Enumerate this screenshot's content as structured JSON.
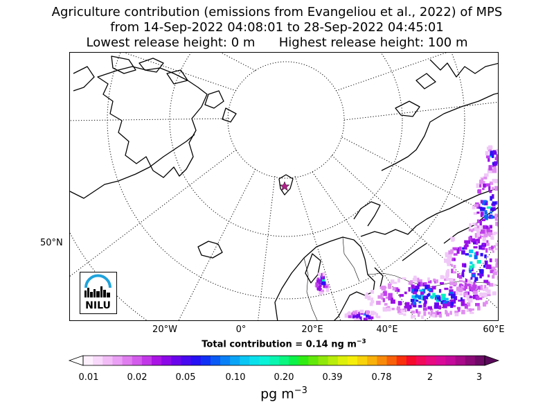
{
  "title": {
    "line1": "Agriculture contribution (emissions from Evangeliou et al., 2022) of MPS",
    "line2": "from 14-Sep-2022 04:08:01 to 28-Sep-2022 04:45:01",
    "line3": "Lowest release height: 0 m      Highest release height: 100 m"
  },
  "map": {
    "lat_labels": [
      "50°N"
    ],
    "lon_labels": [
      "20°W",
      "0°",
      "20°E",
      "40°E",
      "60°E"
    ],
    "station_marker": "star",
    "station_color": "#b0208a"
  },
  "total_contribution": {
    "label": "Total contribution = 0.14 ng m",
    "exponent": "−3"
  },
  "colorbar": {
    "ticks": [
      "0.01",
      "0.02",
      "0.05",
      "0.10",
      "0.20",
      "0.39",
      "0.78",
      "2",
      "3"
    ],
    "colors": [
      "#fdf0fd",
      "#f8d8fb",
      "#f2bdf7",
      "#eaa0f4",
      "#e07ef0",
      "#d45cec",
      "#c238e8",
      "#aa14e4",
      "#8c08e8",
      "#6a04ec",
      "#4808f0",
      "#2610f4",
      "#1030f6",
      "#0a5af6",
      "#0a80f6",
      "#0aa4f6",
      "#0ac6f4",
      "#0ae0ec",
      "#0af2d8",
      "#0af6b0",
      "#0af680",
      "#0cf248",
      "#30ec14",
      "#62e80a",
      "#90e80a",
      "#b8ec0a",
      "#dcf00a",
      "#f6ee0a",
      "#f8d20a",
      "#f8b00a",
      "#f88a0a",
      "#f8600a",
      "#f8300c",
      "#f60a2c",
      "#f20a5a",
      "#e80a80",
      "#da0a98",
      "#c40a9a",
      "#a80a8a",
      "#8a0a78",
      "#6c0a66"
    ],
    "unit_label": "pg m",
    "unit_exponent": "−3"
  },
  "logo": {
    "text": "NILU"
  }
}
